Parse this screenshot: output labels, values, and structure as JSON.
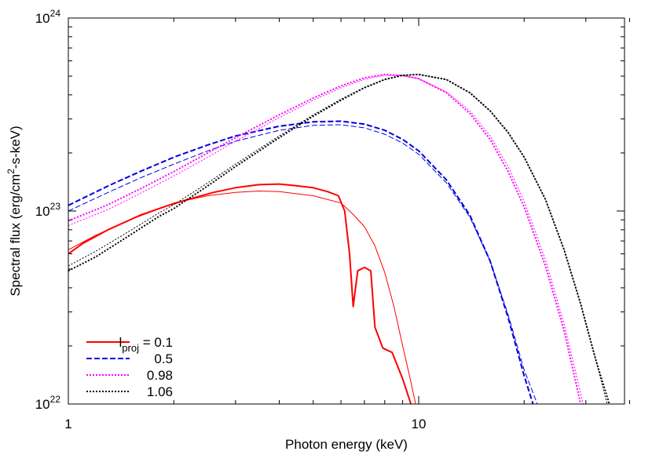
{
  "chart_data": {
    "type": "line",
    "xscale": "log",
    "yscale": "log",
    "xlim": [
      1,
      40
    ],
    "ylim": [
      1e+22,
      1e+24
    ],
    "xlabel": "Photon energy (keV)",
    "ylabel": {
      "prefix": "Spectral flux (erg/cm",
      "sup": "2",
      "suffix": "-s-keV)"
    },
    "x_ticks": [
      {
        "value": 1,
        "label": "1"
      },
      {
        "value": 10,
        "label": "10"
      }
    ],
    "y_ticks": [
      {
        "value": 1e+22,
        "base": "10",
        "exp": "22"
      },
      {
        "value": 1e+23,
        "base": "10",
        "exp": "23"
      },
      {
        "value": 1e+24,
        "base": "10",
        "exp": "24"
      }
    ],
    "legend": {
      "position": "bottom-left",
      "first_prefix": "l",
      "first_sub": "proj",
      "first_suffix": " = 0.1"
    },
    "series": [
      {
        "name": "0.1",
        "color": "#ff0000",
        "dash": "solid",
        "thick": [
          [
            1,
            6e+22
          ],
          [
            1.1,
            6.8e+22
          ],
          [
            1.3,
            8e+22
          ],
          [
            1.6,
            9.5e+22
          ],
          [
            1.9,
            1.06e+23
          ],
          [
            2.2,
            1.15e+23
          ],
          [
            2.6,
            1.25e+23
          ],
          [
            3.0,
            1.32e+23
          ],
          [
            3.5,
            1.37e+23
          ],
          [
            4.0,
            1.38e+23
          ],
          [
            4.5,
            1.35e+23
          ],
          [
            5.0,
            1.32e+23
          ],
          [
            5.5,
            1.26e+23
          ],
          [
            5.9,
            1.2e+23
          ],
          [
            6.15,
            1e+23
          ],
          [
            6.35,
            6e+22
          ],
          [
            6.5,
            3.2e+22
          ],
          [
            6.7,
            4.9e+22
          ],
          [
            7.0,
            5.1e+22
          ],
          [
            7.3,
            4.9e+22
          ],
          [
            7.5,
            2.5e+22
          ],
          [
            7.9,
            1.95e+22
          ],
          [
            8.4,
            1.85e+22
          ],
          [
            9.0,
            1.35e+22
          ],
          [
            9.5,
            1e+22
          ]
        ],
        "thin": [
          [
            1,
            6.3e+22
          ],
          [
            1.2,
            7.5e+22
          ],
          [
            1.5,
            9e+22
          ],
          [
            2.0,
            1.1e+23
          ],
          [
            2.5,
            1.2e+23
          ],
          [
            3.0,
            1.25e+23
          ],
          [
            3.5,
            1.27e+23
          ],
          [
            4.0,
            1.26e+23
          ],
          [
            5.0,
            1.2e+23
          ],
          [
            6.0,
            1.1e+23
          ],
          [
            6.5,
            9.6e+22
          ],
          [
            7.0,
            8.3e+22
          ],
          [
            7.5,
            6.6e+22
          ],
          [
            8.0,
            4.8e+22
          ],
          [
            8.5,
            3.2e+22
          ],
          [
            9.0,
            2e+22
          ],
          [
            9.5,
            1.3e+22
          ],
          [
            9.8,
            1e+22
          ]
        ]
      },
      {
        "name": "0.5",
        "color": "#0000dd",
        "dash": "dashed",
        "thick": [
          [
            1,
            1.07e+23
          ],
          [
            1.3,
            1.35e+23
          ],
          [
            1.6,
            1.6e+23
          ],
          [
            2.0,
            1.9e+23
          ],
          [
            2.5,
            2.2e+23
          ],
          [
            3.0,
            2.45e+23
          ],
          [
            4.0,
            2.75e+23
          ],
          [
            5.0,
            2.9e+23
          ],
          [
            6.0,
            2.92e+23
          ],
          [
            7.0,
            2.82e+23
          ],
          [
            8.0,
            2.62e+23
          ],
          [
            9.0,
            2.35e+23
          ],
          [
            10.0,
            2.05e+23
          ],
          [
            12.0,
            1.45e+23
          ],
          [
            14.0,
            9.5e+22
          ],
          [
            16.0,
            5.5e+22
          ],
          [
            18.0,
            2.8e+22
          ],
          [
            20.0,
            1.4e+22
          ],
          [
            21.2,
            1e+22
          ]
        ],
        "thin": [
          [
            1,
            1e+23
          ],
          [
            1.3,
            1.25e+23
          ],
          [
            1.6,
            1.48e+23
          ],
          [
            2.0,
            1.75e+23
          ],
          [
            2.5,
            2.05e+23
          ],
          [
            3.0,
            2.3e+23
          ],
          [
            4.0,
            2.62e+23
          ],
          [
            5.0,
            2.78e+23
          ],
          [
            6.0,
            2.8e+23
          ],
          [
            7.0,
            2.7e+23
          ],
          [
            8.0,
            2.5e+23
          ],
          [
            9.0,
            2.25e+23
          ],
          [
            10.0,
            1.97e+23
          ],
          [
            12.0,
            1.4e+23
          ],
          [
            14.0,
            9.3e+22
          ],
          [
            16.0,
            5.5e+22
          ],
          [
            18.0,
            2.9e+22
          ],
          [
            20.0,
            1.5e+22
          ],
          [
            21.8,
            1e+22
          ]
        ]
      },
      {
        "name": "0.98",
        "color": "#ff00ff",
        "dash": "dotted",
        "thick": [
          [
            1,
            8.9e+22
          ],
          [
            1.3,
            1.08e+23
          ],
          [
            1.6,
            1.3e+23
          ],
          [
            2.0,
            1.6e+23
          ],
          [
            2.5,
            2e+23
          ],
          [
            3.0,
            2.4e+23
          ],
          [
            4.0,
            3.15e+23
          ],
          [
            5.0,
            3.85e+23
          ],
          [
            6.0,
            4.45e+23
          ],
          [
            7.0,
            4.9e+23
          ],
          [
            8.0,
            5.1e+23
          ],
          [
            9.0,
            5.05e+23
          ],
          [
            10.0,
            4.85e+23
          ],
          [
            12.0,
            4.1e+23
          ],
          [
            14.0,
            3.2e+23
          ],
          [
            16.0,
            2.35e+23
          ],
          [
            18.0,
            1.6e+23
          ],
          [
            20.0,
            1.05e+23
          ],
          [
            23.0,
            5.2e+22
          ],
          [
            26.0,
            2.4e+22
          ],
          [
            29.0,
            1e+22
          ]
        ],
        "thin": [
          [
            1,
            8.4e+22
          ],
          [
            1.3,
            1.02e+23
          ],
          [
            1.6,
            1.23e+23
          ],
          [
            2.0,
            1.52e+23
          ],
          [
            2.5,
            1.9e+23
          ],
          [
            3.0,
            2.3e+23
          ],
          [
            4.0,
            3.05e+23
          ],
          [
            5.0,
            3.75e+23
          ],
          [
            6.0,
            4.35e+23
          ],
          [
            7.0,
            4.82e+23
          ],
          [
            8.0,
            5.05e+23
          ],
          [
            9.0,
            5.02e+23
          ],
          [
            10.0,
            4.85e+23
          ],
          [
            12.0,
            4.15e+23
          ],
          [
            14.0,
            3.3e+23
          ],
          [
            16.0,
            2.45e+23
          ],
          [
            18.0,
            1.7e+23
          ],
          [
            20.0,
            1.12e+23
          ],
          [
            23.0,
            5.6e+22
          ],
          [
            26.0,
            2.6e+22
          ],
          [
            29.5,
            1e+22
          ]
        ]
      },
      {
        "name": "1.06",
        "color": "#000000",
        "dash": "dotted",
        "thick": [
          [
            1,
            4.9e+22
          ],
          [
            1.2,
            5.8e+22
          ],
          [
            1.5,
            7.5e+22
          ],
          [
            1.8,
            9.3e+22
          ],
          [
            2.0,
            1.03e+23
          ],
          [
            2.5,
            1.35e+23
          ],
          [
            3.0,
            1.7e+23
          ],
          [
            4.0,
            2.4e+23
          ],
          [
            5.0,
            3.1e+23
          ],
          [
            6.0,
            3.75e+23
          ],
          [
            7.0,
            4.35e+23
          ],
          [
            8.0,
            4.8e+23
          ],
          [
            9.0,
            5.05e+23
          ],
          [
            10.0,
            5.1e+23
          ],
          [
            12.0,
            4.8e+23
          ],
          [
            14.0,
            4.1e+23
          ],
          [
            16.0,
            3.3e+23
          ],
          [
            18.0,
            2.55e+23
          ],
          [
            20.0,
            1.9e+23
          ],
          [
            23.0,
            1.15e+23
          ],
          [
            26.0,
            6.3e+22
          ],
          [
            29.0,
            3.3e+22
          ],
          [
            32.0,
            1.7e+22
          ],
          [
            35.0,
            1e+22
          ]
        ],
        "thin": [
          [
            1,
            5.2e+22
          ],
          [
            1.2,
            6.2e+22
          ],
          [
            1.5,
            7.9e+22
          ],
          [
            1.8,
            9.7e+22
          ],
          [
            2.0,
            1.08e+23
          ],
          [
            2.5,
            1.4e+23
          ],
          [
            3.0,
            1.75e+23
          ],
          [
            4.0,
            2.45e+23
          ],
          [
            5.0,
            3.15e+23
          ],
          [
            6.0,
            3.8e+23
          ],
          [
            7.0,
            4.38e+23
          ],
          [
            8.0,
            4.82e+23
          ],
          [
            9.0,
            5.05e+23
          ],
          [
            10.0,
            5.1e+23
          ],
          [
            12.0,
            4.8e+23
          ],
          [
            14.0,
            4.1e+23
          ],
          [
            16.0,
            3.3e+23
          ],
          [
            18.0,
            2.55e+23
          ],
          [
            20.0,
            1.9e+23
          ],
          [
            23.0,
            1.15e+23
          ],
          [
            26.0,
            6.3e+22
          ],
          [
            29.0,
            3.3e+22
          ],
          [
            32.0,
            1.7e+22
          ],
          [
            34.5,
            1e+22
          ]
        ]
      }
    ]
  }
}
